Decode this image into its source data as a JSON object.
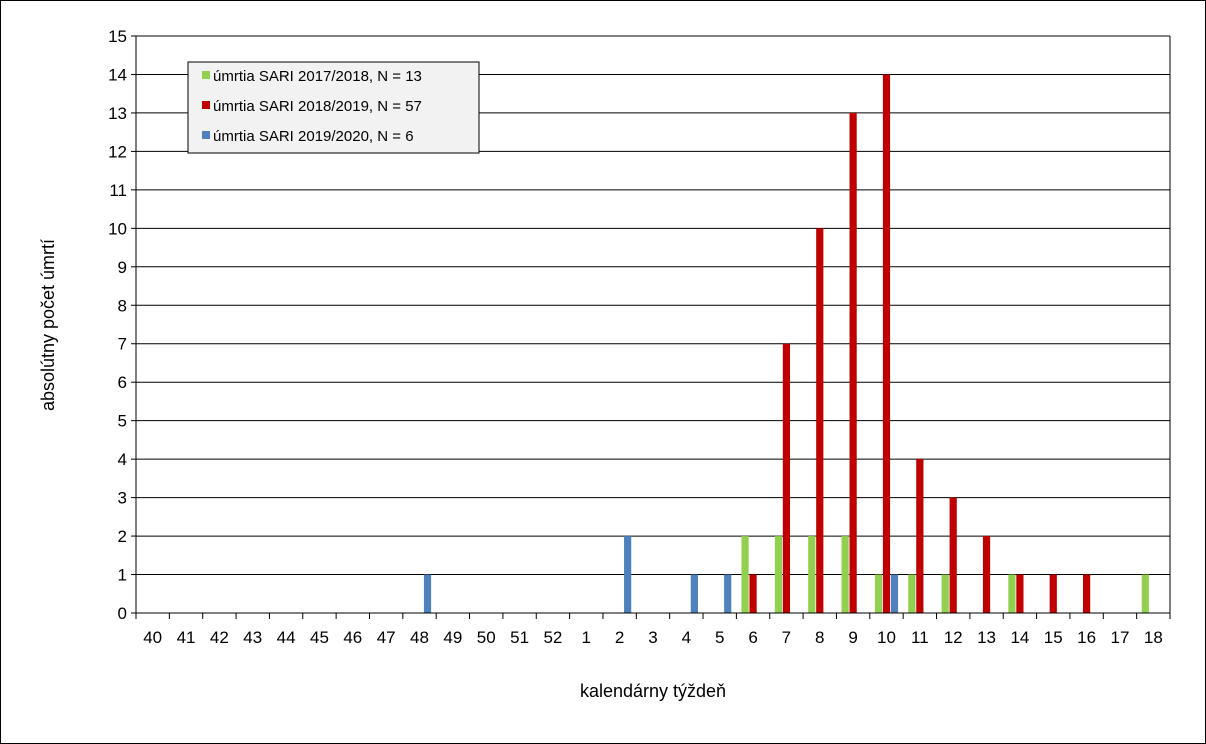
{
  "chart_data": {
    "type": "bar",
    "xlabel": "kalendárny týždeň",
    "ylabel": "absolútny počet úmrtí",
    "ylim": [
      0,
      15
    ],
    "yticks": [
      0,
      1,
      2,
      3,
      4,
      5,
      6,
      7,
      8,
      9,
      10,
      11,
      12,
      13,
      14,
      15
    ],
    "grid": true,
    "legend_position": "top-left",
    "categories": [
      "40",
      "41",
      "42",
      "43",
      "44",
      "45",
      "46",
      "47",
      "48",
      "49",
      "50",
      "51",
      "52",
      "1",
      "2",
      "3",
      "4",
      "5",
      "6",
      "7",
      "8",
      "9",
      "10",
      "11",
      "12",
      "13",
      "14",
      "15",
      "16",
      "17",
      "18"
    ],
    "series": [
      {
        "name": "úmrtia SARI 2017/2018, N = 13",
        "color": "#92d050",
        "values": [
          0,
          0,
          0,
          0,
          0,
          0,
          0,
          0,
          0,
          0,
          0,
          0,
          0,
          0,
          0,
          0,
          0,
          0,
          2,
          2,
          2,
          2,
          1,
          1,
          1,
          0,
          1,
          0,
          0,
          0,
          1
        ]
      },
      {
        "name": "úmrtia SARI 2018/2019, N = 57",
        "color": "#c00000",
        "values": [
          0,
          0,
          0,
          0,
          0,
          0,
          0,
          0,
          0,
          0,
          0,
          0,
          0,
          0,
          0,
          0,
          0,
          0,
          1,
          7,
          10,
          13,
          14,
          4,
          3,
          2,
          1,
          1,
          1,
          0,
          0
        ]
      },
      {
        "name": "úmrtia SARI 2019/2020, N = 6",
        "color": "#4f81bd",
        "values": [
          0,
          0,
          0,
          0,
          0,
          0,
          0,
          0,
          1,
          0,
          0,
          0,
          0,
          0,
          2,
          0,
          1,
          1,
          0,
          0,
          0,
          0,
          1,
          0,
          0,
          0,
          0,
          0,
          0,
          0,
          0
        ]
      }
    ]
  }
}
